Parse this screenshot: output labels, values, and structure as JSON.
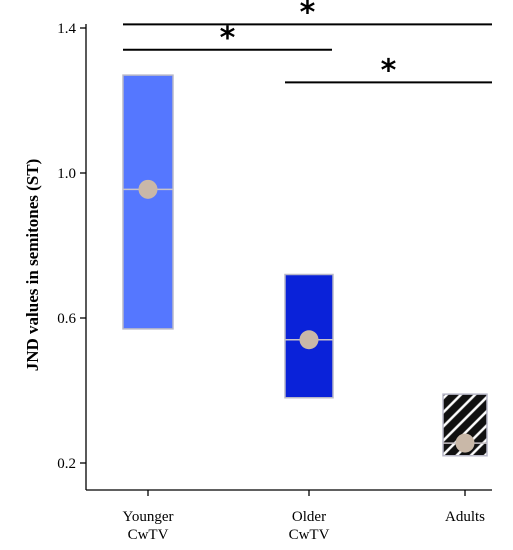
{
  "chart_data": {
    "type": "box",
    "title": "",
    "xlabel": "",
    "ylabel": "JND values in semitones (ST)",
    "ylim": [
      0.2,
      1.4
    ],
    "yticks": [
      "1.4",
      "1.0",
      "0.6",
      "0.2"
    ],
    "ytick_values": [
      1.4,
      1.0,
      0.6,
      0.2
    ],
    "categories": [
      "Younger CwTV",
      "Older CwTV",
      "Adults"
    ],
    "category_lines": [
      [
        "Younger",
        "CwTV"
      ],
      [
        "Older",
        "CwTV"
      ],
      [
        "Adults"
      ]
    ],
    "boxes": [
      {
        "low": 0.57,
        "high": 1.27,
        "median": 0.955,
        "mean": 0.955,
        "color": "#5577ff",
        "pattern": "solid"
      },
      {
        "low": 0.38,
        "high": 0.72,
        "median": 0.54,
        "mean": 0.54,
        "color": "#0a22d9",
        "pattern": "solid"
      },
      {
        "low": 0.22,
        "high": 0.39,
        "median": 0.255,
        "mean": 0.255,
        "color": "#111111",
        "pattern": "hatch"
      }
    ],
    "marker_color": "#c9b8a8",
    "significance": [
      {
        "from": 0,
        "to": 2,
        "y": 1.41,
        "label": "*"
      },
      {
        "from": 0,
        "to": 1,
        "y": 1.34,
        "label": "*"
      },
      {
        "from": 1,
        "to": 2,
        "y": 1.25,
        "label": "*"
      }
    ],
    "grid": false,
    "legend": "none"
  }
}
